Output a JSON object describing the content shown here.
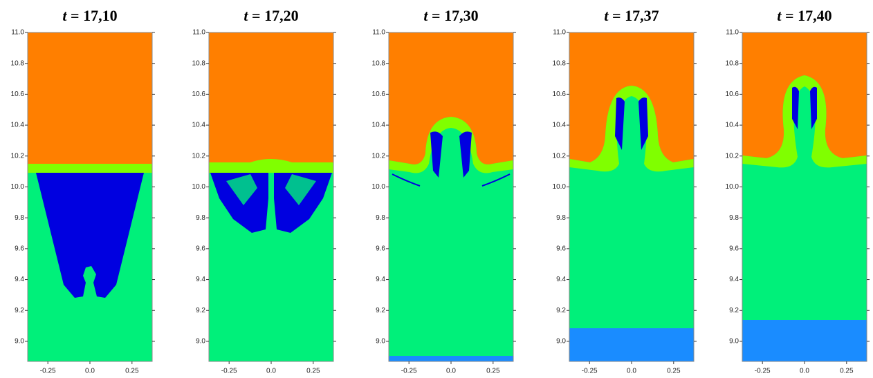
{
  "chart_data": [
    {
      "type": "field",
      "title_var": "t",
      "title": "= 17,10",
      "xlim": [
        -0.37,
        0.37
      ],
      "ylim": [
        8.87,
        11.0
      ],
      "xticks": [
        {
          "value": -0.25,
          "label": "-0.25"
        },
        {
          "value": 0,
          "label": "0.0"
        },
        {
          "value": 0.25,
          "label": "0.25"
        }
      ],
      "yticks": [
        {
          "value": 11,
          "label": "11.0"
        },
        {
          "value": 10.8,
          "label": "10.8"
        },
        {
          "value": 10.6,
          "label": "10.6"
        },
        {
          "value": 10.4,
          "label": "10.4"
        },
        {
          "value": 10.2,
          "label": "10.2"
        },
        {
          "value": 10,
          "label": "10.0"
        },
        {
          "value": 9.8,
          "label": "9.8"
        },
        {
          "value": 9.6,
          "label": "9.6"
        },
        {
          "value": 9.4,
          "label": "9.4"
        },
        {
          "value": 9.2,
          "label": "9.2"
        },
        {
          "value": 9,
          "label": "9.0"
        }
      ]
    },
    {
      "type": "field",
      "title_var": "t",
      "title": "= 17,20",
      "xlim": [
        -0.37,
        0.37
      ],
      "ylim": [
        8.87,
        11.0
      ],
      "xticks": [
        {
          "value": -0.25,
          "label": "-0.25"
        },
        {
          "value": 0,
          "label": "0.0"
        },
        {
          "value": 0.25,
          "label": "0.25"
        }
      ],
      "yticks": [
        {
          "value": 11,
          "label": "11.0"
        },
        {
          "value": 10.8,
          "label": "10.8"
        },
        {
          "value": 10.6,
          "label": "10.6"
        },
        {
          "value": 10.4,
          "label": "10.4"
        },
        {
          "value": 10.2,
          "label": "10.2"
        },
        {
          "value": 10,
          "label": "10.0"
        },
        {
          "value": 9.8,
          "label": "9.8"
        },
        {
          "value": 9.6,
          "label": "9.6"
        },
        {
          "value": 9.4,
          "label": "9.4"
        },
        {
          "value": 9.2,
          "label": "9.2"
        },
        {
          "value": 9,
          "label": "9.0"
        }
      ]
    },
    {
      "type": "field",
      "title_var": "t",
      "title": "= 17,30",
      "xlim": [
        -0.37,
        0.37
      ],
      "ylim": [
        8.87,
        11.0
      ],
      "xticks": [
        {
          "value": -0.25,
          "label": "-0.25"
        },
        {
          "value": 0,
          "label": "0.0"
        },
        {
          "value": 0.25,
          "label": "0.25"
        }
      ],
      "yticks": [
        {
          "value": 11,
          "label": "11.0"
        },
        {
          "value": 10.8,
          "label": "10.8"
        },
        {
          "value": 10.6,
          "label": "10.6"
        },
        {
          "value": 10.4,
          "label": "10.4"
        },
        {
          "value": 10.2,
          "label": "10.2"
        },
        {
          "value": 10,
          "label": "10.0"
        },
        {
          "value": 9.8,
          "label": "9.8"
        },
        {
          "value": 9.6,
          "label": "9.6"
        },
        {
          "value": 9.4,
          "label": "9.4"
        },
        {
          "value": 9.2,
          "label": "9.2"
        },
        {
          "value": 9,
          "label": "9.0"
        }
      ]
    },
    {
      "type": "field",
      "title_var": "t",
      "title": "= 17,37",
      "xlim": [
        -0.37,
        0.37
      ],
      "ylim": [
        8.87,
        11.0
      ],
      "xticks": [
        {
          "value": -0.25,
          "label": "-0.25"
        },
        {
          "value": 0,
          "label": "0.0"
        },
        {
          "value": 0.25,
          "label": "0.25"
        }
      ],
      "yticks": [
        {
          "value": 11,
          "label": "11.0"
        },
        {
          "value": 10.8,
          "label": "10.8"
        },
        {
          "value": 10.6,
          "label": "10.6"
        },
        {
          "value": 10.4,
          "label": "10.4"
        },
        {
          "value": 10.2,
          "label": "10.2"
        },
        {
          "value": 10,
          "label": "10.0"
        },
        {
          "value": 9.8,
          "label": "9.8"
        },
        {
          "value": 9.6,
          "label": "9.6"
        },
        {
          "value": 9.4,
          "label": "9.4"
        },
        {
          "value": 9.2,
          "label": "9.2"
        },
        {
          "value": 9,
          "label": "9.0"
        }
      ]
    },
    {
      "type": "field",
      "title_var": "t",
      "title": "= 17,40",
      "xlim": [
        -0.37,
        0.37
      ],
      "ylim": [
        8.87,
        11.0
      ],
      "xticks": [
        {
          "value": -0.25,
          "label": "-0.25"
        },
        {
          "value": 0,
          "label": "0.0"
        },
        {
          "value": 0.25,
          "label": "0.25"
        }
      ],
      "yticks": [
        {
          "value": 11,
          "label": "11.0"
        },
        {
          "value": 10.8,
          "label": "10.8"
        },
        {
          "value": 10.6,
          "label": "10.6"
        },
        {
          "value": 10.4,
          "label": "10.4"
        },
        {
          "value": 10.2,
          "label": "10.2"
        },
        {
          "value": 10,
          "label": "10.0"
        },
        {
          "value": 9.8,
          "label": "9.8"
        },
        {
          "value": 9.6,
          "label": "9.6"
        },
        {
          "value": 9.4,
          "label": "9.4"
        },
        {
          "value": 9.2,
          "label": "9.2"
        },
        {
          "value": 9,
          "label": "9.0"
        }
      ]
    }
  ]
}
